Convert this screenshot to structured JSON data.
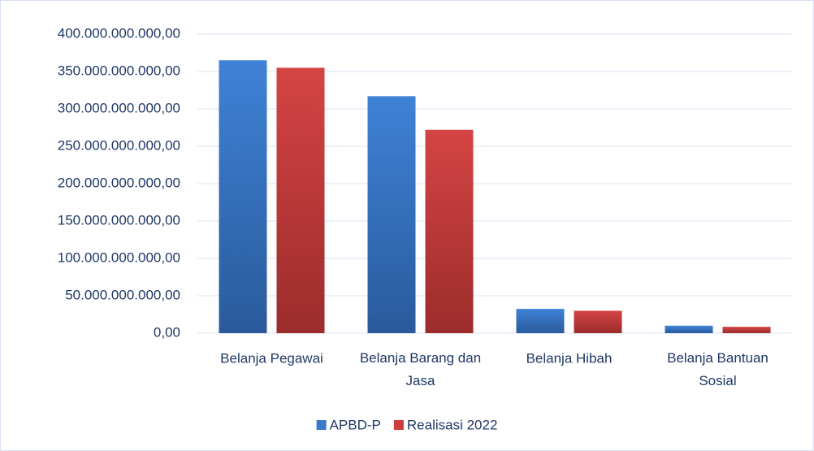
{
  "chart_data": {
    "type": "bar",
    "categories": [
      "Belanja Pegawai",
      "Belanja Barang dan Jasa",
      "Belanja Hibah",
      "Belanja Bantuan Sosial"
    ],
    "series": [
      {
        "name": "APBD-P",
        "color": "#3b78c8",
        "values": [
          365000000000,
          317000000000,
          32500000000,
          10000000000
        ]
      },
      {
        "name": "Realisasi 2022",
        "color": "#cc3e3e",
        "values": [
          355000000000,
          272000000000,
          30000000000,
          8500000000
        ]
      }
    ],
    "ylim": [
      0,
      400000000000
    ],
    "yticks": [
      {
        "value": 0,
        "label": "0,00"
      },
      {
        "value": 50000000000,
        "label": "50.000.000.000,00"
      },
      {
        "value": 100000000000,
        "label": "100.000.000.000,00"
      },
      {
        "value": 150000000000,
        "label": "150.000.000.000,00"
      },
      {
        "value": 200000000000,
        "label": "200.000.000.000,00"
      },
      {
        "value": 250000000000,
        "label": "250.000.000.000,00"
      },
      {
        "value": 300000000000,
        "label": "300.000.000.000,00"
      },
      {
        "value": 350000000000,
        "label": "350.000.000.000,00"
      },
      {
        "value": 400000000000,
        "label": "400.000.000.000,00"
      }
    ],
    "grid": true,
    "legend": "bottom"
  }
}
